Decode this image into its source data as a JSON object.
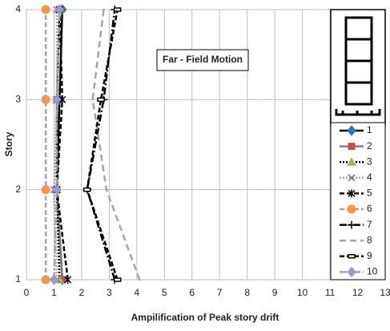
{
  "chart_data": {
    "type": "line",
    "title": "Far - Field Motion",
    "x_label": "Ampilification of Peak story drift",
    "y_label": "Story",
    "y": [
      1,
      2,
      3,
      4
    ],
    "xlim": [
      0,
      13
    ],
    "xticks": [
      0,
      1,
      2,
      3,
      4,
      5,
      6,
      7,
      8,
      9,
      10,
      11,
      12,
      13
    ],
    "ylim": [
      1,
      4
    ],
    "yticks": [
      1,
      2,
      3,
      4
    ],
    "grid": true,
    "legend": "right",
    "series": [
      {
        "name": "1",
        "color": "#000000",
        "marker": "diamond",
        "marker_color": "#2e75b6",
        "dash": "solid",
        "values": [
          1.3,
          1.1,
          1.2,
          1.3
        ]
      },
      {
        "name": "2",
        "color": "#7f7f7f",
        "marker": "square",
        "marker_color": "#c0504d",
        "dash": "solid",
        "values": [
          1.3,
          1.1,
          1.1,
          1.2
        ]
      },
      {
        "name": "3",
        "color": "#000000",
        "marker": "triangle",
        "marker_color": "#9bbb59",
        "dash": "dotted",
        "values": [
          1.2,
          1.1,
          1.1,
          1.2
        ]
      },
      {
        "name": "4",
        "color": "#a5a5a5",
        "marker": "cross",
        "marker_color": "#8064a2",
        "dash": "dotted",
        "values": [
          1.1,
          1.0,
          1.1,
          1.1
        ]
      },
      {
        "name": "5",
        "color": "#000000",
        "marker": "asterisk",
        "marker_color": "#000000",
        "dash": "dashed",
        "values": [
          1.5,
          1.1,
          1.3,
          1.2
        ]
      },
      {
        "name": "6",
        "color": "#a5a5a5",
        "marker": "circle",
        "marker_color": "#f79646",
        "dash": "dashed",
        "values": [
          0.7,
          0.7,
          0.7,
          0.7
        ]
      },
      {
        "name": "7",
        "color": "#000000",
        "marker": "plus",
        "marker_color": "#000000",
        "dash": "dashdot",
        "values": [
          3.2,
          2.2,
          2.8,
          3.2
        ]
      },
      {
        "name": "8",
        "color": "#a5a5a5",
        "marker": "none",
        "marker_color": "#a5a5a5",
        "dash": "longdash",
        "values": [
          4.1,
          2.9,
          2.4,
          2.8
        ]
      },
      {
        "name": "9",
        "color": "#000000",
        "marker": "dash",
        "marker_color": "#000000",
        "dash": "dashed",
        "values": [
          3.3,
          2.2,
          2.7,
          3.3
        ]
      },
      {
        "name": "10",
        "color": "#a5a5a5",
        "marker": "diamond",
        "marker_color": "#9999cc",
        "dash": "dashdot",
        "values": [
          1.0,
          1.1,
          1.1,
          1.2
        ]
      }
    ]
  }
}
